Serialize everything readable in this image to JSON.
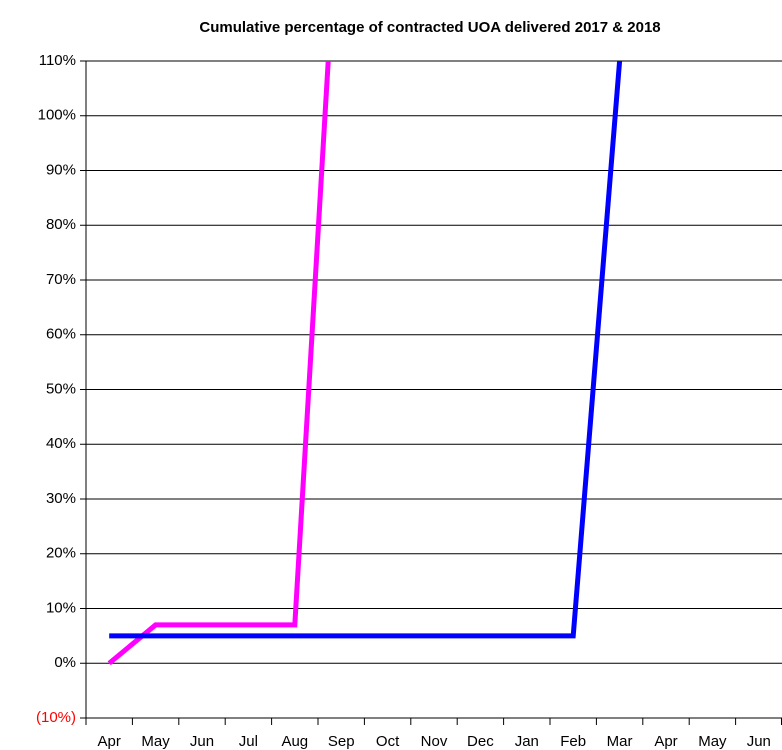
{
  "chart_data": {
    "type": "line",
    "title": "Cumulative percentage of contracted UOA delivered 2017 & 2018",
    "categories": [
      "Apr",
      "May",
      "Jun",
      "Jul",
      "Aug",
      "Sep",
      "Oct",
      "Nov",
      "Dec",
      "Jan",
      "Feb",
      "Mar",
      "Apr",
      "May",
      "Jun"
    ],
    "series": [
      {
        "color": "#ff00ff",
        "values": [
          0,
          7,
          7,
          7,
          7,
          150,
          null,
          null,
          null,
          null,
          null,
          null,
          null,
          null,
          null
        ]
      },
      {
        "color": "#0000ff",
        "values": [
          5,
          5,
          5,
          5,
          5,
          5,
          5,
          5,
          5,
          5,
          5,
          110,
          null,
          null,
          null
        ]
      }
    ],
    "ylim": [
      -10,
      110
    ],
    "yticks": [
      {
        "value": -10,
        "label": "(10%)"
      },
      {
        "value": 0,
        "label": "0%"
      },
      {
        "value": 10,
        "label": "10%"
      },
      {
        "value": 20,
        "label": "20%"
      },
      {
        "value": 30,
        "label": "30%"
      },
      {
        "value": 40,
        "label": "40%"
      },
      {
        "value": 50,
        "label": "50%"
      },
      {
        "value": 60,
        "label": "60%"
      },
      {
        "value": 70,
        "label": "70%"
      },
      {
        "value": 80,
        "label": "80%"
      },
      {
        "value": 90,
        "label": "90%"
      },
      {
        "value": 100,
        "label": "100%"
      },
      {
        "value": 110,
        "label": "110%"
      }
    ],
    "negative_tick_color": "#ff0000",
    "grid": true
  }
}
